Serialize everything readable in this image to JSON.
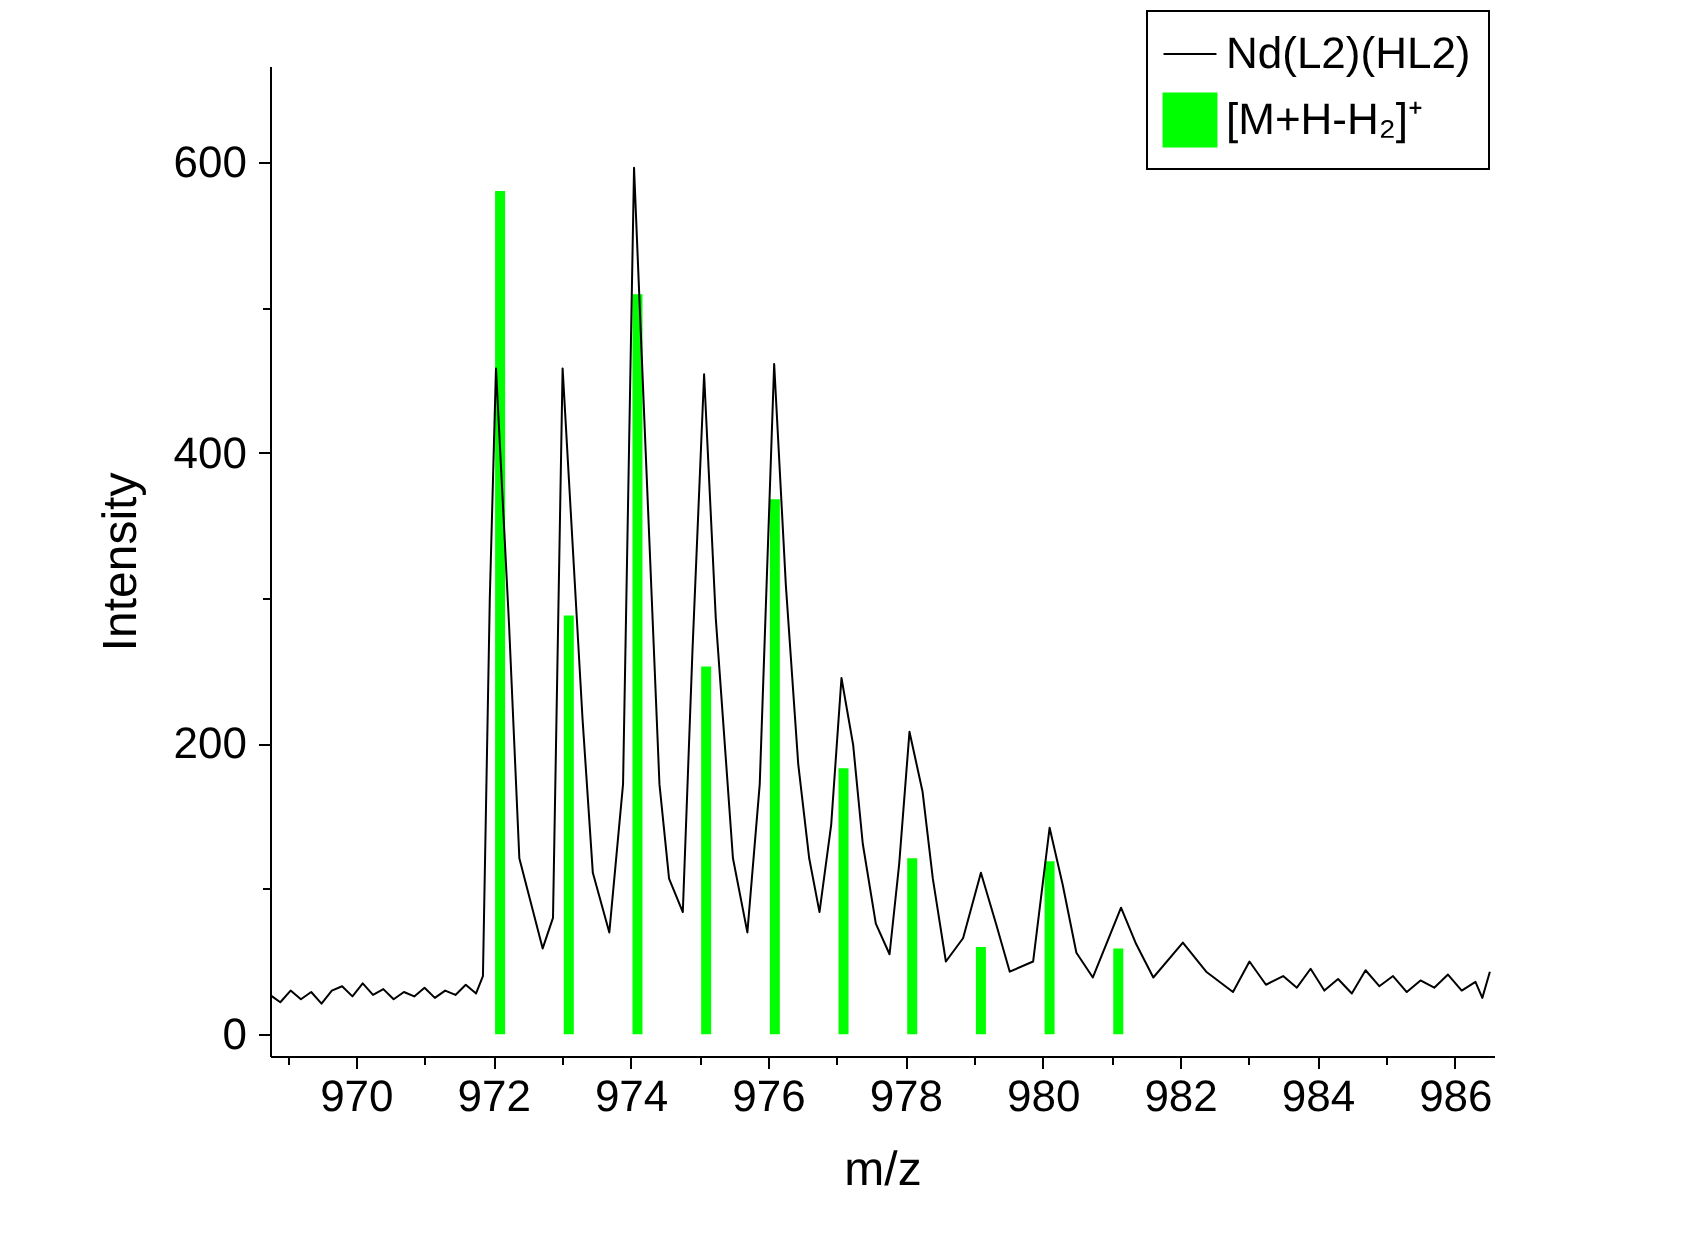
{
  "chart_data": {
    "type": "line",
    "xlabel": "m/z",
    "ylabel": "Intensity",
    "legend": "top right",
    "xlim": [
      968.75,
      986.57
    ],
    "ylim": [
      -15,
      666
    ],
    "xticks": [
      {
        "value": 969,
        "label": null
      },
      970,
      {
        "value": 971,
        "label": null
      },
      972,
      {
        "value": 973,
        "label": null
      },
      974,
      {
        "value": 975,
        "label": null
      },
      976,
      {
        "value": 977,
        "label": null
      },
      978,
      {
        "value": 979,
        "label": null
      },
      980,
      {
        "value": 981,
        "label": null
      },
      982,
      {
        "value": 983,
        "label": null
      },
      984,
      {
        "value": 985,
        "label": null
      },
      986
    ],
    "yticks": [
      0,
      {
        "value": 100,
        "label": null
      },
      200,
      {
        "value": 300,
        "label": null
      },
      400,
      {
        "value": 500,
        "label": null
      },
      600
    ],
    "series": [
      {
        "name": "Nd(L2)(HL2)",
        "color": "#000000",
        "x": [
          968.75,
          968.9,
          969.05,
          969.2,
          969.35,
          969.5,
          969.65,
          969.8,
          969.95,
          970.1,
          970.25,
          970.4,
          970.55,
          970.7,
          970.85,
          971.0,
          971.15,
          971.3,
          971.45,
          971.6,
          971.75,
          971.85,
          971.95,
          972.04,
          972.23,
          972.38,
          972.72,
          972.87,
          973.01,
          973.3,
          973.45,
          973.69,
          973.89,
          974.05,
          974.22,
          974.42,
          974.56,
          974.76,
          974.9,
          975.07,
          975.24,
          975.49,
          975.7,
          975.88,
          976.09,
          976.26,
          976.44,
          976.6,
          976.75,
          976.92,
          977.07,
          977.24,
          977.38,
          977.57,
          977.77,
          977.91,
          978.06,
          978.25,
          978.4,
          978.59,
          978.84,
          979.1,
          979.32,
          979.52,
          979.86,
          980.1,
          980.29,
          980.49,
          980.73,
          981.14,
          981.36,
          981.61,
          982.04,
          982.38,
          982.77,
          983.01,
          983.25,
          983.5,
          983.7,
          983.9,
          984.1,
          984.3,
          984.5,
          984.7,
          984.9,
          985.1,
          985.3,
          985.5,
          985.7,
          985.9,
          986.1,
          986.3,
          986.4,
          986.51
        ],
        "values": [
          27,
          22,
          30,
          24,
          29,
          21,
          30,
          33,
          26,
          35,
          27,
          31,
          24,
          29,
          26,
          32,
          25,
          30,
          27,
          34,
          28,
          40,
          300,
          458,
          282,
          121,
          59,
          80,
          458,
          217,
          111,
          70,
          172,
          596,
          400,
          172,
          107,
          84,
          263,
          454,
          286,
          121,
          70,
          172,
          461,
          309,
          186,
          121,
          84,
          144,
          245,
          199,
          131,
          76,
          55,
          117,
          208,
          167,
          107,
          50,
          66,
          111,
          76,
          43,
          50,
          142,
          103,
          56,
          39,
          87,
          62,
          39,
          63,
          43,
          29,
          50,
          34,
          40,
          32,
          45,
          30,
          38,
          28,
          44,
          33,
          40,
          29,
          37,
          32,
          41,
          30,
          36,
          25,
          43
        ]
      },
      {
        "name": "[M+H-H₂]⁺",
        "type": "bar",
        "color": "#00ff00",
        "x": [
          972.1,
          973.1,
          974.1,
          975.1,
          976.1,
          977.1,
          978.1,
          979.1,
          980.1,
          981.1
        ],
        "values": [
          580,
          288,
          509,
          253,
          368,
          183,
          121,
          60,
          119,
          59
        ]
      }
    ]
  }
}
